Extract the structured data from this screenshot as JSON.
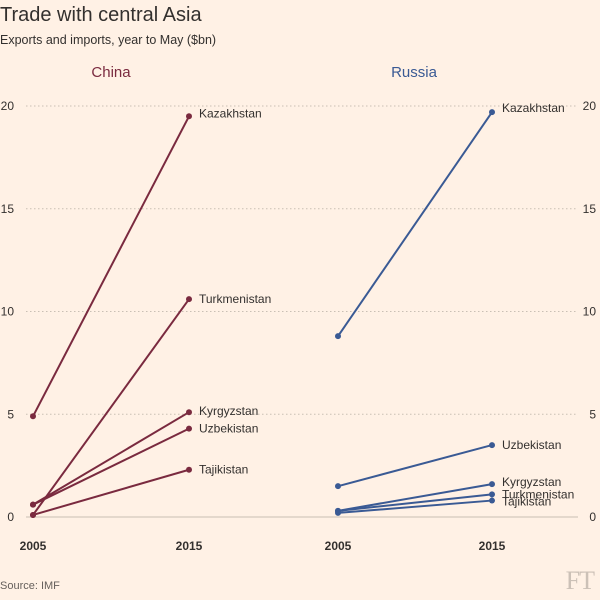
{
  "header": {
    "title": "Trade with central Asia",
    "subtitle": "Exports and imports, year to May ($bn)"
  },
  "footer": {
    "source": "Source: IMF",
    "logo": "FT"
  },
  "colors": {
    "china": "#7a2a3f",
    "russia": "#3a5a94",
    "grid": "#c9bfb4",
    "axis": "#33302e"
  },
  "chart_data": [
    {
      "type": "line",
      "title": "China",
      "x": [
        "2005",
        "2015"
      ],
      "ylim": [
        0,
        20
      ],
      "yticks": [
        0,
        5,
        10,
        15,
        20
      ],
      "grid": true,
      "series": [
        {
          "name": "Kazakhstan",
          "values": [
            4.9,
            19.5
          ]
        },
        {
          "name": "Turkmenistan",
          "values": [
            0.1,
            10.6
          ]
        },
        {
          "name": "Kyrgyzstan",
          "values": [
            0.6,
            5.1
          ]
        },
        {
          "name": "Uzbekistan",
          "values": [
            0.6,
            4.3
          ]
        },
        {
          "name": "Tajikistan",
          "values": [
            0.1,
            2.3
          ]
        }
      ]
    },
    {
      "type": "line",
      "title": "Russia",
      "x": [
        "2005",
        "2015"
      ],
      "ylim": [
        0,
        20
      ],
      "yticks": [
        0,
        5,
        10,
        15,
        20
      ],
      "grid": true,
      "series": [
        {
          "name": "Kazakhstan",
          "values": [
            8.8,
            19.7
          ]
        },
        {
          "name": "Uzbekistan",
          "values": [
            1.5,
            3.5
          ]
        },
        {
          "name": "Kyrgyzstan",
          "values": [
            0.3,
            1.6
          ]
        },
        {
          "name": "Turkmenistan",
          "values": [
            0.3,
            1.1
          ]
        },
        {
          "name": "Tajikistan",
          "values": [
            0.2,
            0.8
          ]
        }
      ]
    }
  ]
}
